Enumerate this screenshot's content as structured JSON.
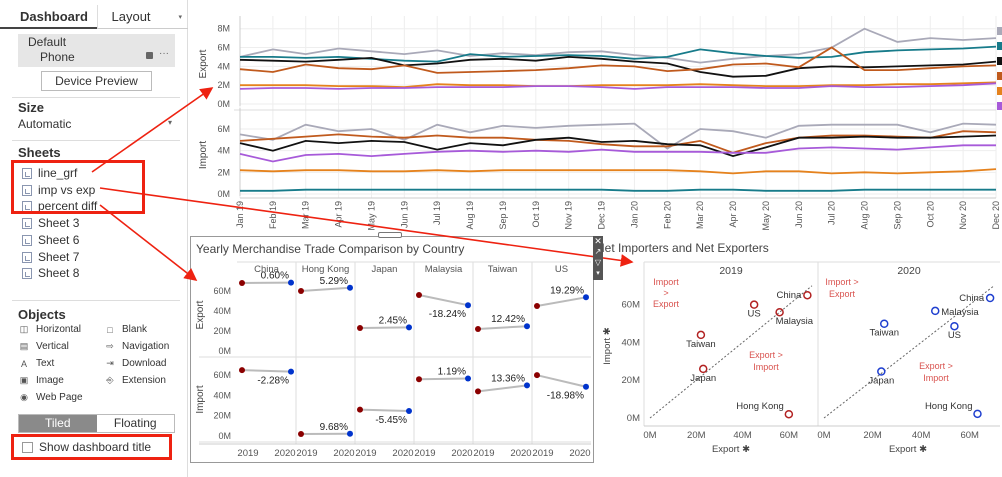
{
  "sidebar": {
    "tabs": [
      "Dashboard",
      "Layout"
    ],
    "device": {
      "name": "Default",
      "sub": "Phone"
    },
    "preview_button": "Device Preview",
    "size_title": "Size",
    "size_value": "Automatic",
    "sheets_title": "Sheets",
    "sheets": [
      "line_grf",
      "imp vs exp",
      "percent diff",
      "Sheet 3",
      "Sheet 6",
      "Sheet 7",
      "Sheet 8"
    ],
    "objects_title": "Objects",
    "objects": [
      {
        "label": "Horizontal",
        "icon": "horizontal-icon"
      },
      {
        "label": "Blank",
        "icon": "blank-icon"
      },
      {
        "label": "Vertical",
        "icon": "vertical-icon"
      },
      {
        "label": "Navigation",
        "icon": "navigation-icon"
      },
      {
        "label": "Text",
        "icon": "text-icon"
      },
      {
        "label": "Download",
        "icon": "download-icon"
      },
      {
        "label": "Image",
        "icon": "image-icon"
      },
      {
        "label": "Extension",
        "icon": "extension-icon"
      },
      {
        "label": "Web Page",
        "icon": "globe-icon"
      }
    ],
    "layout_modes": [
      "Tiled",
      "Floating"
    ],
    "show_title_label": "Show dashboard title"
  },
  "chart_data": [
    {
      "type": "line",
      "x": [
        "Jan 19",
        "Feb 19",
        "Mar 19",
        "Apr 19",
        "May 19",
        "Jun 19",
        "Jul 19",
        "Aug 19",
        "Sep 19",
        "Oct 19",
        "Nov 19",
        "Dec 19",
        "Jan 20",
        "Feb 20",
        "Mar 20",
        "Apr 20",
        "May 20",
        "Jun 20",
        "Jul 20",
        "Aug 20",
        "Sep 20",
        "Oct 20",
        "Nov 20",
        "Dec 20"
      ],
      "panes": [
        {
          "ylabel": "Export",
          "yticks": [
            "0M",
            "2M",
            "4M",
            "6M",
            "8M"
          ],
          "ylim": [
            0,
            8.5
          ],
          "series": [
            {
              "color": "#a9a9b8",
              "values": [
                5.0,
                5.8,
                5.3,
                5.9,
                5.6,
                5.3,
                5.7,
                5.1,
                5.4,
                5.2,
                5.5,
                5.6,
                5.2,
                4.9,
                4.4,
                4.8,
                5.1,
                5.3,
                6.0,
                8.0,
                6.6,
                7.0,
                6.8,
                7.0
              ]
            },
            {
              "color": "#177b8a",
              "values": [
                5.0,
                5.0,
                4.9,
                5.0,
                4.8,
                4.6,
                4.5,
                5.3,
                5.0,
                5.1,
                5.2,
                5.1,
                4.8,
                5.0,
                5.8,
                5.4,
                5.1,
                4.9,
                5.0,
                5.5,
                5.7,
                5.8,
                5.9,
                6.1
              ]
            },
            {
              "color": "#111111",
              "values": [
                4.7,
                4.6,
                4.5,
                4.7,
                4.9,
                4.1,
                4.3,
                4.7,
                4.8,
                4.6,
                5.0,
                4.8,
                4.5,
                4.3,
                3.4,
                2.9,
                3.0,
                3.8,
                4.0,
                3.9,
                4.0,
                4.1,
                4.2,
                4.5
              ]
            },
            {
              "color": "#c05a1d",
              "values": [
                3.7,
                3.4,
                4.2,
                3.8,
                3.7,
                4.1,
                3.3,
                3.4,
                3.5,
                3.6,
                3.8,
                4.1,
                4.0,
                3.5,
                3.7,
                4.2,
                4.3,
                3.9,
                6.0,
                3.6,
                3.6,
                3.8,
                4.0,
                4.1
              ]
            },
            {
              "color": "#e5821d",
              "values": [
                2.0,
                2.0,
                2.0,
                1.9,
                1.9,
                1.8,
                2.1,
                2.0,
                2.0,
                1.9,
                1.9,
                2.0,
                2.0,
                2.0,
                2.1,
                2.0,
                1.9,
                1.9,
                2.0,
                2.0,
                2.1,
                2.1,
                2.2,
                2.3
              ]
            },
            {
              "color": "#a75ad9",
              "values": [
                1.6,
                1.7,
                1.7,
                1.6,
                1.7,
                1.7,
                1.8,
                1.8,
                1.8,
                1.9,
                1.9,
                1.8,
                1.6,
                1.8,
                1.8,
                1.8,
                1.7,
                1.7,
                1.9,
                1.8,
                1.8,
                1.9,
                2.0,
                2.2
              ]
            }
          ]
        },
        {
          "ylabel": "Import",
          "yticks": [
            "0M",
            "2M",
            "4M",
            "6M"
          ],
          "ylim": [
            0,
            7.2
          ],
          "series": [
            {
              "color": "#a9a9b8",
              "values": [
                5.5,
                5.0,
                6.4,
                5.8,
                6.0,
                5.0,
                6.4,
                5.7,
                6.3,
                6.1,
                6.3,
                6.4,
                6.5,
                4.2,
                6.0,
                5.8,
                5.2,
                6.3,
                6.4,
                6.4,
                6.4,
                5.7,
                6.5,
                6.4
              ]
            },
            {
              "color": "#c05a1d",
              "values": [
                4.9,
                5.1,
                5.3,
                5.5,
                5.3,
                5.2,
                5.4,
                5.2,
                5.2,
                5.0,
                4.9,
                4.6,
                4.4,
                4.4,
                4.9,
                3.8,
                4.7,
                5.2,
                5.4,
                5.4,
                5.3,
                5.2,
                5.8,
                5.7
              ]
            },
            {
              "color": "#111111",
              "values": [
                4.7,
                4.0,
                4.9,
                4.7,
                4.9,
                4.8,
                4.1,
                4.7,
                4.5,
                5.0,
                5.2,
                4.8,
                4.9,
                4.6,
                4.5,
                3.5,
                4.3,
                5.2,
                5.2,
                5.3,
                5.2,
                5.2,
                5.3,
                5.4
              ]
            },
            {
              "color": "#a75ad9",
              "values": [
                3.7,
                3.0,
                3.6,
                3.7,
                3.5,
                3.7,
                3.9,
                4.0,
                3.9,
                4.0,
                3.9,
                4.1,
                3.9,
                3.9,
                3.9,
                3.8,
                3.8,
                4.2,
                4.3,
                4.2,
                4.1,
                4.3,
                4.5,
                4.5
              ]
            },
            {
              "color": "#e5821d",
              "values": [
                2.2,
                2.1,
                2.2,
                2.2,
                2.1,
                2.1,
                2.2,
                2.1,
                2.2,
                2.2,
                2.2,
                2.2,
                2.2,
                2.2,
                2.1,
                1.9,
                2.1,
                2.1,
                1.9,
                2.0,
                1.9,
                2.0,
                2.1,
                2.3
              ]
            },
            {
              "color": "#177b8a",
              "values": [
                0.3,
                0.3,
                0.4,
                0.4,
                0.4,
                0.4,
                0.4,
                0.4,
                0.4,
                0.4,
                0.4,
                0.4,
                0.3,
                0.3,
                0.4,
                0.4,
                0.3,
                0.3,
                0.3,
                0.4,
                0.4,
                0.4,
                0.4,
                0.4
              ]
            }
          ]
        }
      ]
    },
    {
      "type": "dumbbell",
      "title": "Yearly Merchandise Trade Comparison by Country",
      "columns": [
        "China",
        "Hong Kong",
        "Japan",
        "Malaysia",
        "Taiwan",
        "US"
      ],
      "x_ticks": [
        "2019",
        "2020"
      ],
      "colors": {
        "2019": "#8b0000",
        "2020": "#0033cc"
      },
      "rows": [
        {
          "label": "Export",
          "yticks": [
            "0M",
            "20M",
            "40M",
            "60M"
          ],
          "ylim": [
            0,
            72
          ],
          "values": [
            [
              68,
              68.4
            ],
            [
              60,
              63.2
            ],
            [
              23,
              23.6
            ],
            [
              56,
              45.8
            ],
            [
              22,
              24.8
            ],
            [
              45,
              53.7
            ]
          ],
          "labels": [
            "0.60%",
            "5.29%",
            "2.45%",
            "-18.24%",
            "12.42%",
            "19.29%"
          ]
        },
        {
          "label": "Import",
          "yticks": [
            "0M",
            "20M",
            "40M",
            "60M"
          ],
          "ylim": [
            0,
            72
          ],
          "values": [
            [
              65,
              63.5
            ],
            [
              2,
              2.2
            ],
            [
              26,
              24.6
            ],
            [
              56,
              56.7
            ],
            [
              44,
              49.9
            ],
            [
              60,
              48.6
            ]
          ],
          "labels": [
            "-2.28%",
            "9.68%",
            "-5.45%",
            "1.19%",
            "13.36%",
            "-18.98%"
          ]
        }
      ]
    },
    {
      "type": "scatter",
      "title": "Net Importers and Net Exporters",
      "panels": [
        "2019",
        "2020"
      ],
      "xlabel": "Export",
      "ylabel": "Import",
      "xticks": [
        "0M",
        "20M",
        "40M",
        "60M"
      ],
      "yticks": [
        "0M",
        "20M",
        "40M",
        "60M"
      ],
      "xlim": [
        0,
        70
      ],
      "ylim": [
        0,
        72
      ],
      "region_labels": {
        "above": "Import > Export",
        "below": "Export > Import"
      },
      "points": [
        {
          "panel": "2019",
          "label": "China",
          "x": 68,
          "y": 65
        },
        {
          "panel": "2019",
          "label": "US",
          "x": 45,
          "y": 60
        },
        {
          "panel": "2019",
          "label": "Malaysia",
          "x": 56,
          "y": 56
        },
        {
          "panel": "2019",
          "label": "Taiwan",
          "x": 22,
          "y": 44
        },
        {
          "panel": "2019",
          "label": "Japan",
          "x": 23,
          "y": 26
        },
        {
          "panel": "2019",
          "label": "Hong Kong",
          "x": 60,
          "y": 2
        },
        {
          "panel": "2020",
          "label": "China",
          "x": 68.4,
          "y": 63.5
        },
        {
          "panel": "2020",
          "label": "Malaysia",
          "x": 45.8,
          "y": 56.7
        },
        {
          "panel": "2020",
          "label": "Taiwan",
          "x": 24.8,
          "y": 49.9
        },
        {
          "panel": "2020",
          "label": "US",
          "x": 53.7,
          "y": 48.6
        },
        {
          "panel": "2020",
          "label": "Japan",
          "x": 23.6,
          "y": 24.6
        },
        {
          "panel": "2020",
          "label": "Hong Kong",
          "x": 63.2,
          "y": 2.2
        }
      ]
    }
  ]
}
